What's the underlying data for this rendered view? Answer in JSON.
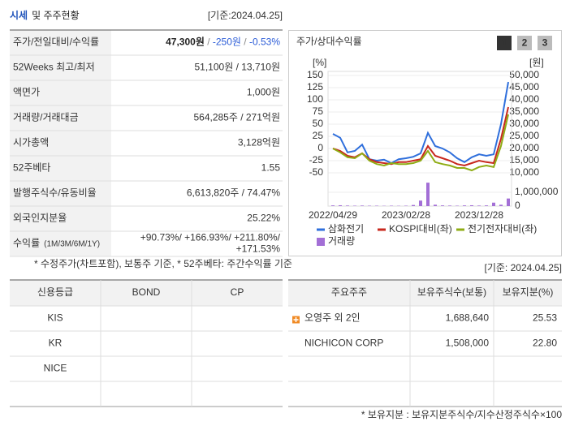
{
  "header": {
    "title_highlight": "시세",
    "title": "및 주주현황",
    "basis": "[기준:2024.04.25]"
  },
  "summary": {
    "rows": [
      {
        "label": [
          "주가/전일대비/수익률"
        ],
        "value": [
          "47,300원",
          " / ",
          "-250원",
          " / ",
          "-0.53%"
        ],
        "colors": [
          "#222222",
          "#888888",
          "#2a5bd7",
          "#888888",
          "#2a5bd7"
        ],
        "bold": true
      },
      {
        "label": [
          "52Weeks 최고/최저"
        ],
        "value": [
          "51,100원 / 13,710원"
        ]
      },
      {
        "label": [
          "액면가"
        ],
        "value": [
          "1,000원"
        ]
      },
      {
        "label": [
          "거래량/거래대금"
        ],
        "value": [
          "564,285주 / 271억원"
        ]
      },
      {
        "label": [
          "시가총액"
        ],
        "value": [
          "3,128억원"
        ]
      },
      {
        "label": [
          "52주베타"
        ],
        "value": [
          "1.55"
        ]
      },
      {
        "label": [
          "발행주식수/유동비율"
        ],
        "value": [
          "6,613,820주 / 74.47%"
        ]
      },
      {
        "label": [
          "외국인지분율"
        ],
        "value": [
          "25.22%"
        ]
      },
      {
        "label": [
          "수익률",
          "(1M/3M/6M/1Y)"
        ],
        "value": [
          "+90.73%/ +166.93%/ +211.80%/",
          "+171.53%"
        ],
        "colors": [
          "#d0021b"
        ],
        "multiline": true
      }
    ],
    "note": "* 수정주가(차트포함), 보통주 기준, * 52주베타: 주간수익률 기준"
  },
  "chart_panel": {
    "tabs": [
      "1",
      "2",
      "3"
    ],
    "active_tab": 0,
    "basis": "[기준: 2024.04.25]"
  },
  "chart_data": {
    "type": "line",
    "title": "주가/상대수익률",
    "categories": [
      "2022/04/29",
      null,
      null,
      null,
      null,
      null,
      null,
      null,
      null,
      null,
      "2023/02/28",
      null,
      null,
      null,
      null,
      null,
      null,
      null,
      null,
      null,
      "2023/12/28",
      null,
      null,
      null,
      null
    ],
    "ylabel": "[%]",
    "y2label": "[원]",
    "ylim": [
      -50,
      150
    ],
    "yticks": [
      150,
      125,
      100,
      75,
      50,
      25,
      0,
      -25,
      -50
    ],
    "y2lim": [
      10000,
      50000
    ],
    "y2ticks": [
      {
        "value": 50000,
        "label": "50,000"
      },
      {
        "value": 45000,
        "label": "45,000"
      },
      {
        "value": 40000,
        "label": "40,000"
      },
      {
        "value": 35000,
        "label": "35,000"
      },
      {
        "value": 30000,
        "label": "30,000"
      },
      {
        "value": 25000,
        "label": "25,000"
      },
      {
        "value": 20000,
        "label": "20,000"
      },
      {
        "value": 15000,
        "label": "15,000"
      },
      {
        "value": 10000,
        "label": "10,000"
      }
    ],
    "y3lim": [
      0,
      1800000
    ],
    "y3ticks": [
      {
        "value": 1000000,
        "label": "1,000,000"
      },
      0
    ],
    "grid": true,
    "series": [
      {
        "name": "삼화전기",
        "color": "#2f6fdc",
        "axis": "y2",
        "values": [
          26000,
          24400,
          18400,
          19000,
          21600,
          15600,
          15000,
          15400,
          14000,
          15600,
          16000,
          16600,
          18000,
          26400,
          21000,
          20000,
          18400,
          16000,
          14400,
          16400,
          17600,
          17000,
          17600,
          30000,
          47300
        ]
      },
      {
        "name": "KOSPI대비(좌)",
        "color": "#c8281e",
        "values": [
          0,
          -5,
          -15,
          -18,
          -10,
          -22,
          -28,
          -30,
          -32,
          -28,
          -28,
          -25,
          -22,
          5,
          -15,
          -20,
          -25,
          -32,
          -35,
          -30,
          -25,
          -28,
          -30,
          20,
          85
        ]
      },
      {
        "name": "전기전자대비(좌)",
        "color": "#8fac14",
        "values": [
          0,
          -8,
          -18,
          -20,
          -10,
          -25,
          -32,
          -35,
          -30,
          -32,
          -32,
          -30,
          -25,
          -5,
          -28,
          -32,
          -35,
          -40,
          -40,
          -45,
          -38,
          -35,
          -38,
          5,
          70
        ]
      },
      {
        "name": "거래량",
        "color": "#a36fd6",
        "type": "bar",
        "axis": "y3",
        "values": [
          50000,
          60000,
          40000,
          30000,
          40000,
          30000,
          30000,
          20000,
          30000,
          20000,
          30000,
          80000,
          400000,
          1700000,
          100000,
          50000,
          40000,
          30000,
          50000,
          60000,
          40000,
          50000,
          250000,
          100000,
          550000
        ]
      }
    ]
  },
  "ratings": {
    "header": [
      "신용등급",
      "BOND",
      "CP"
    ],
    "rows": [
      [
        "KIS"
      ],
      [
        "KR"
      ],
      [
        "NICE"
      ]
    ]
  },
  "holders": {
    "header": [
      "주요주주",
      "보유주식수(보통)",
      "보유지분(%)"
    ],
    "rows": [
      [
        "오영주 외 2인",
        "1,688,640",
        "25.53"
      ],
      [
        "NICHICON CORP",
        "1,508,000",
        "22.80"
      ]
    ],
    "note": "* 보유지분 : 보유지분주식수/지수산정주식수×100"
  }
}
